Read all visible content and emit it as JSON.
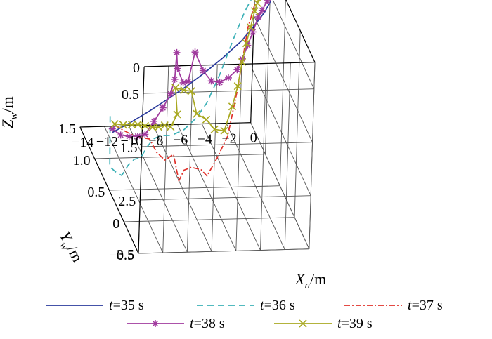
{
  "chart_data": {
    "type": "line",
    "projection": "3d",
    "title": "",
    "xlabel": {
      "main": "X",
      "sub": "n",
      "unit": "/m"
    },
    "ylabel": {
      "main": "Y",
      "sub": "w",
      "unit": "/m"
    },
    "zlabel": {
      "main": "Z",
      "sub": "w",
      "unit": "/m"
    },
    "xlim": [
      -14,
      0
    ],
    "ylim": [
      -0.5,
      1.5
    ],
    "zlim": [
      0,
      3.5
    ],
    "z_reversed": true,
    "x_ticks": [
      "−14",
      "−12",
      "−10",
      "−8",
      "−6",
      "−4",
      "−2",
      "0"
    ],
    "y_ticks": [
      "−0.5",
      "0",
      "0.5",
      "1.0",
      "1.5"
    ],
    "z_ticks": [
      "0",
      "0.5",
      "1.5",
      "2.5",
      "3.5"
    ],
    "grid": true,
    "legend_position": "bottom",
    "series": [
      {
        "name": "t=35 s",
        "name_var": "t",
        "name_rest": "=35 s",
        "color": "#2a3a9c",
        "dash": "solid",
        "marker": "none",
        "points": [
          [
            -13.9,
            0.5,
            2.42
          ],
          [
            -12.5,
            0.5,
            2.25
          ],
          [
            -11,
            0.5,
            2.05
          ],
          [
            -9.5,
            0.5,
            1.83
          ],
          [
            -8,
            0.5,
            1.6
          ],
          [
            -6.5,
            0.5,
            1.35
          ],
          [
            -5,
            0.5,
            1.07
          ],
          [
            -3.5,
            0.5,
            0.76
          ],
          [
            -2.5,
            0.5,
            0.48
          ],
          [
            -1.7,
            0.5,
            0.24
          ],
          [
            -1.2,
            0.5,
            0.02
          ]
        ]
      },
      {
        "name": "t=36 s",
        "name_var": "t",
        "name_rest": "=36 s",
        "color": "#3ab0b6",
        "dash": "dashed",
        "marker": "none",
        "points": [
          [
            -13.6,
            0.7,
            2.35
          ],
          [
            -13.5,
            0.7,
            3.3
          ],
          [
            -13,
            0.7,
            3.4
          ],
          [
            -12.5,
            0.7,
            3.47
          ],
          [
            -12,
            0.7,
            3.28
          ],
          [
            -11.5,
            0.7,
            3.17
          ],
          [
            -11,
            0.7,
            3.15
          ],
          [
            -10.5,
            0.7,
            2.95
          ],
          [
            -10,
            0.7,
            2.8
          ],
          [
            -9.4,
            0.7,
            2.74
          ],
          [
            -8.5,
            0.7,
            2.74
          ],
          [
            -7.5,
            0.7,
            2.64
          ],
          [
            -6.5,
            0.7,
            2.42
          ],
          [
            -5.7,
            0.7,
            2.15
          ],
          [
            -4.7,
            0.7,
            1.62
          ],
          [
            -3.7,
            0.7,
            0.98
          ],
          [
            -2.8,
            0.7,
            0.45
          ],
          [
            -2.2,
            0.7,
            0.18
          ],
          [
            -1.5,
            0.7,
            0.03
          ]
        ]
      },
      {
        "name": "t=37 s",
        "name_var": "t",
        "name_rest": "=37 s",
        "color": "#e0302a",
        "dash": "dashdot",
        "marker": "none",
        "points": [
          [
            -13.2,
            0.7,
            2.52
          ],
          [
            -12.5,
            0.7,
            2.62
          ],
          [
            -11.5,
            0.7,
            2.74
          ],
          [
            -10.3,
            0.7,
            2.8
          ],
          [
            -9.7,
            0.7,
            3.05
          ],
          [
            -9,
            0.7,
            3.2
          ],
          [
            -8.3,
            0.7,
            3.1
          ],
          [
            -7.8,
            0.7,
            3.6
          ],
          [
            -7.4,
            0.7,
            3.4
          ],
          [
            -6.8,
            0.7,
            3.35
          ],
          [
            -6,
            0.7,
            3.4
          ],
          [
            -5.5,
            0.7,
            3.52
          ],
          [
            -4.7,
            0.7,
            3.18
          ],
          [
            -3.9,
            0.7,
            2.78
          ],
          [
            -3.2,
            0.7,
            1.9
          ],
          [
            -2.5,
            0.7,
            0.75
          ],
          [
            -2,
            0.7,
            0.32
          ],
          [
            -1.5,
            0.7,
            0.02
          ]
        ]
      },
      {
        "name": "t=38 s",
        "name_var": "t",
        "name_rest": "=38 s",
        "color": "#a03a9e",
        "dash": "solid",
        "marker": "star",
        "points": [
          [
            -13.9,
            0.5,
            2.35
          ],
          [
            -13.2,
            0.5,
            2.47
          ],
          [
            -12.5,
            0.5,
            2.5
          ],
          [
            -11.8,
            0.5,
            2.5
          ],
          [
            -11.2,
            0.5,
            2.47
          ],
          [
            -10.5,
            0.5,
            2.23
          ],
          [
            -9.8,
            0.5,
            1.98
          ],
          [
            -9.2,
            0.5,
            1.72
          ],
          [
            -8.9,
            0.5,
            1.45
          ],
          [
            -8.8,
            0.5,
            0.95
          ],
          [
            -8.7,
            0.5,
            1.25
          ],
          [
            -8.2,
            0.5,
            1.52
          ],
          [
            -7.8,
            0.5,
            1.5
          ],
          [
            -7.3,
            0.5,
            0.95
          ],
          [
            -6.6,
            0.5,
            1.3
          ],
          [
            -5.9,
            0.5,
            1.5
          ],
          [
            -5.2,
            0.5,
            1.53
          ],
          [
            -4.5,
            0.5,
            1.45
          ],
          [
            -3.8,
            0.5,
            1.3
          ],
          [
            -3.4,
            0.5,
            1.1
          ],
          [
            -3,
            0.5,
            0.85
          ],
          [
            -2.6,
            0.5,
            0.6
          ],
          [
            -2.2,
            0.5,
            0.32
          ],
          [
            -1.9,
            0.5,
            0.2
          ],
          [
            -1.5,
            0.5,
            0.02
          ]
        ]
      },
      {
        "name": "t=39 s",
        "name_var": "t",
        "name_rest": "=39 s",
        "color": "#a8a820",
        "dash": "solid",
        "marker": "x",
        "points": [
          [
            -13.2,
            0.7,
            2.5
          ],
          [
            -12.5,
            0.7,
            2.52
          ],
          [
            -11.8,
            0.7,
            2.52
          ],
          [
            -11.3,
            0.7,
            2.52
          ],
          [
            -10.7,
            0.7,
            2.55
          ],
          [
            -10.1,
            0.7,
            2.58
          ],
          [
            -9.6,
            0.7,
            2.58
          ],
          [
            -9.1,
            0.7,
            2.55
          ],
          [
            -8.6,
            0.7,
            2.58
          ],
          [
            -8.1,
            0.7,
            2.35
          ],
          [
            -8.3,
            0.7,
            1.85
          ],
          [
            -7.6,
            0.7,
            1.9
          ],
          [
            -7,
            0.7,
            1.92
          ],
          [
            -6.5,
            0.7,
            2.35
          ],
          [
            -5.7,
            0.7,
            2.46
          ],
          [
            -5,
            0.7,
            2.65
          ],
          [
            -4.2,
            0.7,
            2.68
          ],
          [
            -3.6,
            0.7,
            2.23
          ],
          [
            -3.2,
            0.7,
            1.85
          ],
          [
            -2.9,
            0.7,
            1.4
          ],
          [
            -2.6,
            0.7,
            1.05
          ],
          [
            -2.3,
            0.7,
            0.75
          ],
          [
            -2,
            0.7,
            0.45
          ],
          [
            -1.8,
            0.7,
            0.3
          ],
          [
            -1.5,
            0.7,
            0.02
          ]
        ]
      }
    ]
  }
}
